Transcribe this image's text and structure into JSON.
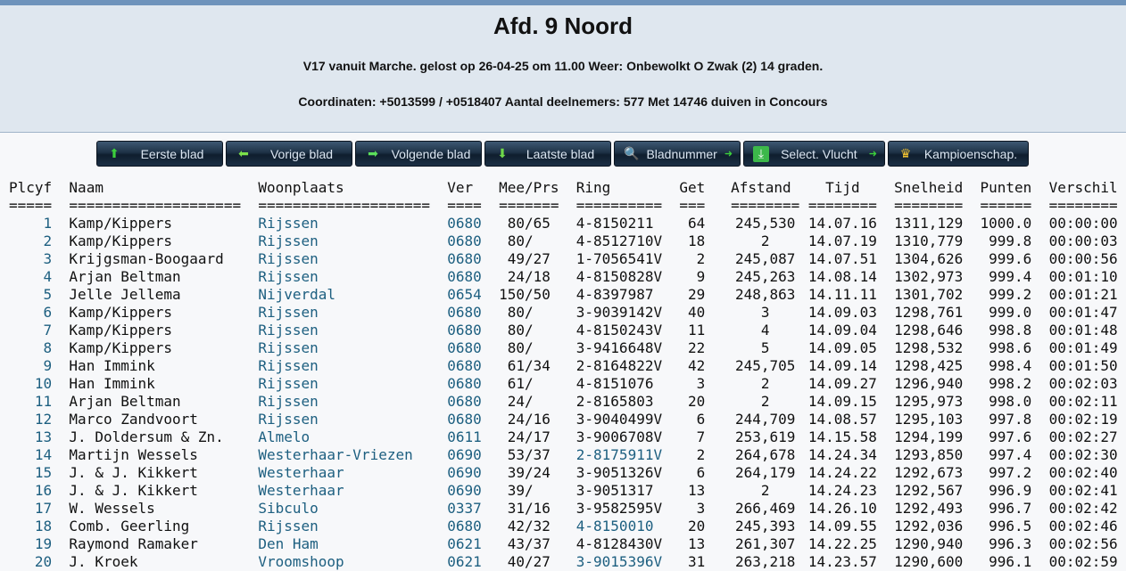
{
  "header": {
    "title": "Afd. 9 Noord",
    "subtitle": "V17 vanuit Marche. gelost op 26-04-25 om 11.00 Weer: Onbewolkt O Zwak (2) 14 graden.",
    "info": "Coordinaten: +5013599 / +0518407 Aantal deelnemers: 577 Met 14746 duiven in Concours"
  },
  "nav": [
    {
      "label": "Eerste blad",
      "icon": "arrow-up-icon"
    },
    {
      "label": "Vorige blad",
      "icon": "arrow-left-icon"
    },
    {
      "label": "Volgende blad",
      "icon": "arrow-right-icon"
    },
    {
      "label": "Laatste blad",
      "icon": "arrow-down-icon"
    },
    {
      "label": "Bladnummer",
      "icon": "search-icon"
    },
    {
      "label": "Select. Vlucht",
      "icon": "download-icon"
    },
    {
      "label": "Kampioenschap.",
      "icon": "crown-icon"
    }
  ],
  "colors": {
    "link": "#1d5f80",
    "header_bg": "#dfe7ef",
    "topbar": "#6e93bb",
    "button": "#1e3246"
  },
  "table": {
    "columns": [
      "Plcyf",
      "Naam",
      "Woonplaats",
      "Ver",
      "Mee/Prs",
      "Ring",
      "Get",
      "Afstand",
      "Tijd",
      "Snelheid",
      "Punten",
      "Verschil"
    ],
    "separators": [
      "=====",
      "====================",
      "====================",
      "====",
      "=======",
      "==========",
      "===",
      "========",
      "========",
      "========",
      "======",
      "========"
    ],
    "rows": [
      [
        "1",
        "Kamp/Kippers",
        "Rijssen",
        "0680",
        "80/65",
        "4-8150211",
        "64",
        "245,530",
        "14.07.16",
        "1311,129",
        "1000.0",
        "00:00:00",
        false
      ],
      [
        "2",
        "Kamp/Kippers",
        "Rijssen",
        "0680",
        "80/",
        "4-8512710V",
        "18",
        "2",
        "14.07.19",
        "1310,779",
        "999.8",
        "00:00:03",
        false
      ],
      [
        "3",
        "Krijgsman-Boogaard",
        "Rijssen",
        "0680",
        "49/27",
        "1-7056541V",
        "2",
        "245,087",
        "14.07.51",
        "1304,626",
        "999.6",
        "00:00:56",
        false
      ],
      [
        "4",
        "Arjan Beltman",
        "Rijssen",
        "0680",
        "24/18",
        "4-8150828V",
        "9",
        "245,263",
        "14.08.14",
        "1302,973",
        "999.4",
        "00:01:10",
        false
      ],
      [
        "5",
        "Jelle Jellema",
        "Nijverdal",
        "0654",
        "150/50",
        "4-8397987",
        "29",
        "248,863",
        "14.11.11",
        "1301,702",
        "999.2",
        "00:01:21",
        false
      ],
      [
        "6",
        "Kamp/Kippers",
        "Rijssen",
        "0680",
        "80/",
        "3-9039142V",
        "40",
        "3",
        "14.09.03",
        "1298,761",
        "999.0",
        "00:01:47",
        false
      ],
      [
        "7",
        "Kamp/Kippers",
        "Rijssen",
        "0680",
        "80/",
        "4-8150243V",
        "11",
        "4",
        "14.09.04",
        "1298,646",
        "998.8",
        "00:01:48",
        false
      ],
      [
        "8",
        "Kamp/Kippers",
        "Rijssen",
        "0680",
        "80/",
        "3-9416648V",
        "22",
        "5",
        "14.09.05",
        "1298,532",
        "998.6",
        "00:01:49",
        false
      ],
      [
        "9",
        "Han Immink",
        "Rijssen",
        "0680",
        "61/34",
        "2-8164822V",
        "42",
        "245,705",
        "14.09.14",
        "1298,425",
        "998.4",
        "00:01:50",
        false
      ],
      [
        "10",
        "Han Immink",
        "Rijssen",
        "0680",
        "61/",
        "4-8151076",
        "3",
        "2",
        "14.09.27",
        "1296,940",
        "998.2",
        "00:02:03",
        false
      ],
      [
        "11",
        "Arjan Beltman",
        "Rijssen",
        "0680",
        "24/",
        "2-8165803",
        "20",
        "2",
        "14.09.15",
        "1295,973",
        "998.0",
        "00:02:11",
        false
      ],
      [
        "12",
        "Marco Zandvoort",
        "Rijssen",
        "0680",
        "24/16",
        "3-9040499V",
        "6",
        "244,709",
        "14.08.57",
        "1295,103",
        "997.8",
        "00:02:19",
        false
      ],
      [
        "13",
        "J. Doldersum & Zn.",
        "Almelo",
        "0611",
        "24/17",
        "3-9006708V",
        "7",
        "253,619",
        "14.15.58",
        "1294,199",
        "997.6",
        "00:02:27",
        false
      ],
      [
        "14",
        "Martijn Wessels",
        "Westerhaar-Vriezen",
        "0690",
        "53/37",
        "2-8175911V",
        "2",
        "264,678",
        "14.24.34",
        "1293,850",
        "997.4",
        "00:02:30",
        true
      ],
      [
        "15",
        "J. & J. Kikkert",
        "Westerhaar",
        "0690",
        "39/24",
        "3-9051326V",
        "6",
        "264,179",
        "14.24.22",
        "1292,673",
        "997.2",
        "00:02:40",
        false
      ],
      [
        "16",
        "J. & J. Kikkert",
        "Westerhaar",
        "0690",
        "39/",
        "3-9051317",
        "13",
        "2",
        "14.24.23",
        "1292,567",
        "996.9",
        "00:02:41",
        false
      ],
      [
        "17",
        "W. Wessels",
        "Sibculo",
        "0337",
        "31/16",
        "3-9582595V",
        "3",
        "266,469",
        "14.26.10",
        "1292,493",
        "996.7",
        "00:02:42",
        false
      ],
      [
        "18",
        "Comb. Geerling",
        "Rijssen",
        "0680",
        "42/32",
        "4-8150010",
        "20",
        "245,393",
        "14.09.55",
        "1292,036",
        "996.5",
        "00:02:46",
        true
      ],
      [
        "19",
        "Raymond Ramaker",
        "Den Ham",
        "0621",
        "43/37",
        "4-8128430V",
        "13",
        "261,307",
        "14.22.25",
        "1290,940",
        "996.3",
        "00:02:56",
        false
      ],
      [
        "20",
        "J. Kroek",
        "Vroomshoop",
        "0621",
        "40/27",
        "3-9015396V",
        "31",
        "263,218",
        "14.23.57",
        "1290,600",
        "996.1",
        "00:02:59",
        true
      ]
    ]
  }
}
